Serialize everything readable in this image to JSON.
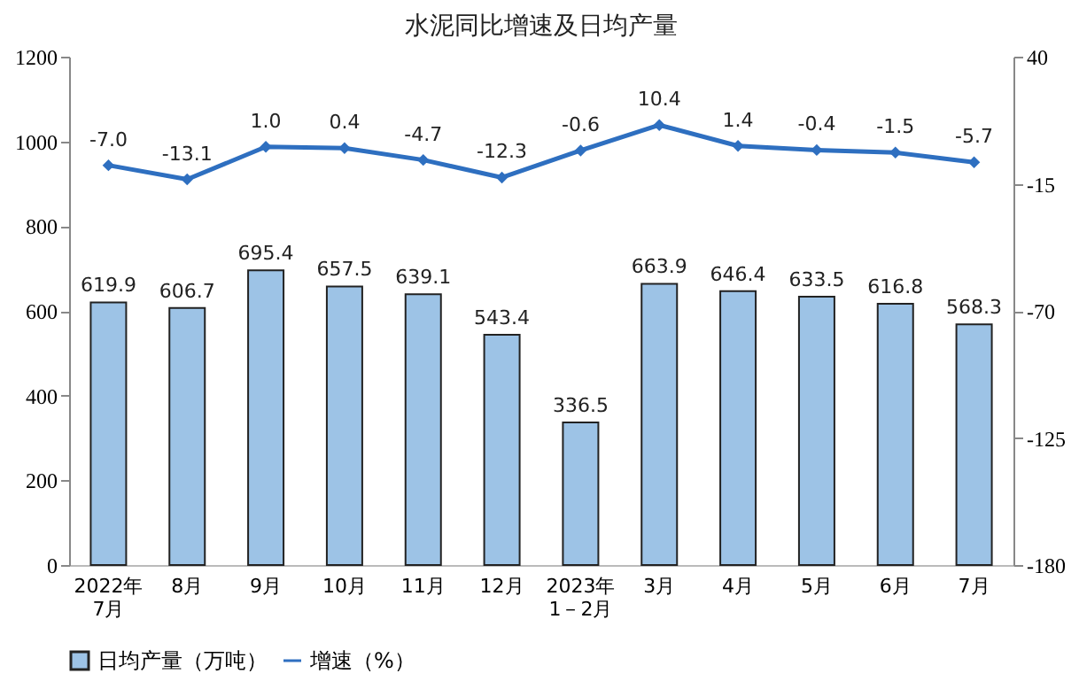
{
  "chart_data": {
    "type": "bar",
    "title": "水泥同比增速及日均产量",
    "categories": [
      "2022年\n7月",
      "8月",
      "9月",
      "10月",
      "11月",
      "12月",
      "2023年\n1－2月",
      "3月",
      "4月",
      "5月",
      "6月",
      "7月"
    ],
    "series": [
      {
        "name": "日均产量（万吨）",
        "color": "#9dc3e6",
        "values": [
          619.9,
          606.7,
          695.4,
          657.5,
          639.1,
          543.4,
          336.5,
          663.9,
          646.4,
          633.5,
          616.8,
          568.3
        ],
        "value_labels": [
          "619.9",
          "606.7",
          "695.4",
          "657.5",
          "639.1",
          "543.4",
          "336.5",
          "663.9",
          "646.4",
          "633.5",
          "616.8",
          "568.3"
        ]
      },
      {
        "name": "增速（%）",
        "type": "line",
        "axis": "y2",
        "color": "#2e6fc0",
        "marker": "diamond",
        "values": [
          -7.0,
          -13.1,
          1.0,
          0.4,
          -4.7,
          -12.3,
          -0.6,
          10.4,
          1.4,
          -0.4,
          -1.5,
          -5.7
        ],
        "value_labels": [
          "-7.0",
          "-13.1",
          "1.0",
          "0.4",
          "-4.7",
          "-12.3",
          "-0.6",
          "10.4",
          "1.4",
          "-0.4",
          "-1.5",
          "-5.7"
        ]
      }
    ],
    "ylim": [
      0,
      1200
    ],
    "yticks": [
      0,
      200,
      400,
      600,
      800,
      1000,
      1200
    ],
    "y2lim": [
      -180,
      40
    ],
    "y2ticks": [
      -180,
      -125,
      -70,
      -15,
      40
    ],
    "grid": false,
    "legend": "bottom"
  }
}
